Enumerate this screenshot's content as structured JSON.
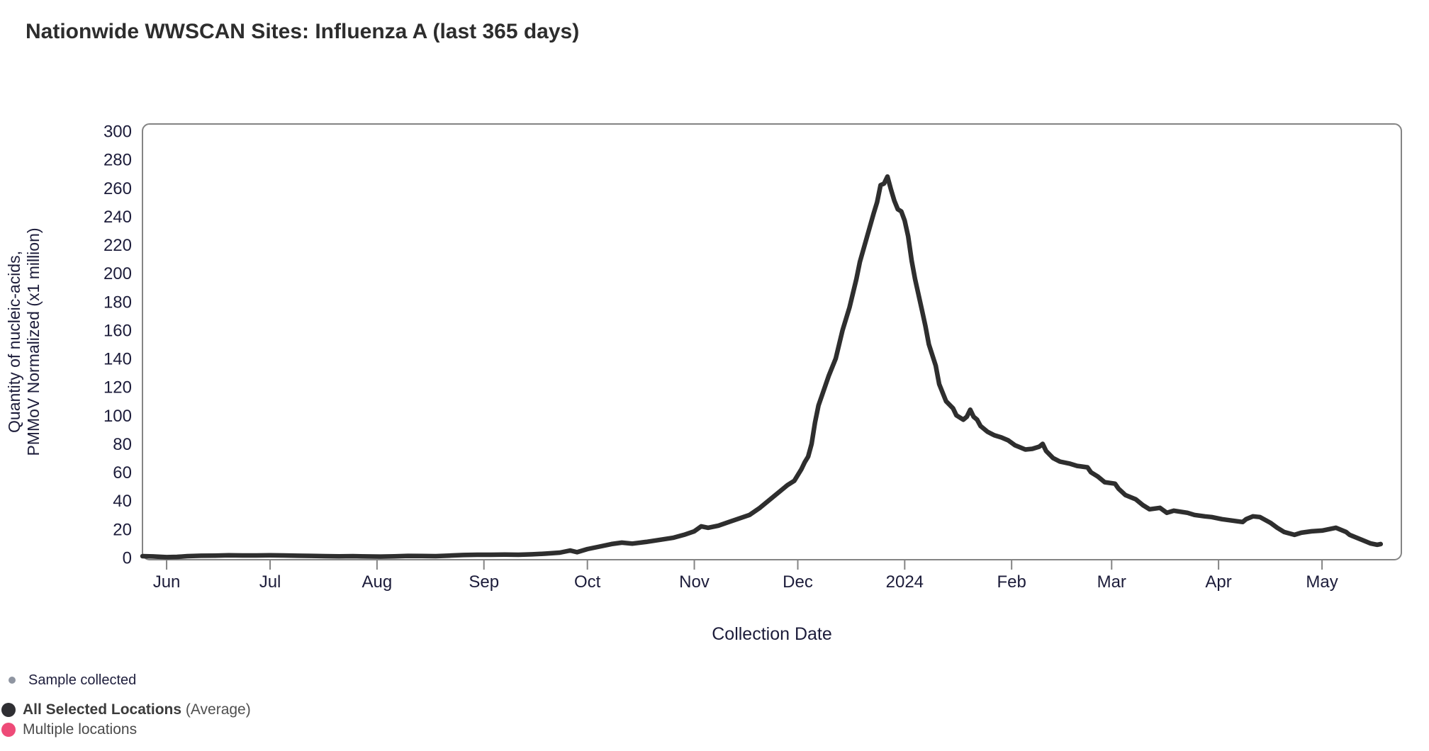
{
  "page": {
    "background": "#ffffff",
    "title": "Nationwide WWSCAN Sites: Influenza A (last 365 days)"
  },
  "chart_data": {
    "type": "line",
    "title": "Nationwide WWSCAN Sites: Influenza A (last 365 days)",
    "xlabel": "Collection Date",
    "ylabel_lines": [
      "Quantity of nucleic-acids,",
      "PMMoV Normalized (x1 million)"
    ],
    "ylim": [
      0,
      300
    ],
    "ytick_step": 20,
    "grid": false,
    "legend_position": "bottom-left",
    "x_domain": [
      "2023-05-25",
      "2024-05-24"
    ],
    "xticks": [
      {
        "date": "2023-06-01",
        "label": "Jun"
      },
      {
        "date": "2023-07-01",
        "label": "Jul"
      },
      {
        "date": "2023-08-01",
        "label": "Aug"
      },
      {
        "date": "2023-09-01",
        "label": "Sep"
      },
      {
        "date": "2023-10-01",
        "label": "Oct"
      },
      {
        "date": "2023-11-01",
        "label": "Nov"
      },
      {
        "date": "2023-12-01",
        "label": "Dec"
      },
      {
        "date": "2024-01-01",
        "label": "2024"
      },
      {
        "date": "2024-02-01",
        "label": "Feb"
      },
      {
        "date": "2024-03-01",
        "label": "Mar"
      },
      {
        "date": "2024-04-01",
        "label": "Apr"
      },
      {
        "date": "2024-05-01",
        "label": "May"
      }
    ],
    "colors": {
      "line": "#2e2e2e",
      "axis": "#848484",
      "tick_text": "#1c1c3a"
    },
    "series": [
      {
        "name": "All Selected Locations (Average)",
        "color": "#2e2e2e",
        "points": [
          [
            "2023-05-25",
            1
          ],
          [
            "2023-05-28",
            0.8
          ],
          [
            "2023-06-01",
            0.3
          ],
          [
            "2023-06-04",
            0.5
          ],
          [
            "2023-06-07",
            1
          ],
          [
            "2023-06-11",
            1.3
          ],
          [
            "2023-06-15",
            1.4
          ],
          [
            "2023-06-19",
            1.6
          ],
          [
            "2023-06-23",
            1.5
          ],
          [
            "2023-06-27",
            1.5
          ],
          [
            "2023-07-01",
            1.6
          ],
          [
            "2023-07-05",
            1.5
          ],
          [
            "2023-07-09",
            1.3
          ],
          [
            "2023-07-13",
            1.2
          ],
          [
            "2023-07-17",
            1
          ],
          [
            "2023-07-21",
            0.9
          ],
          [
            "2023-07-25",
            1
          ],
          [
            "2023-07-29",
            0.8
          ],
          [
            "2023-08-02",
            0.7
          ],
          [
            "2023-08-06",
            0.9
          ],
          [
            "2023-08-10",
            1.2
          ],
          [
            "2023-08-14",
            1.1
          ],
          [
            "2023-08-18",
            1
          ],
          [
            "2023-08-22",
            1.4
          ],
          [
            "2023-08-26",
            1.8
          ],
          [
            "2023-08-30",
            2
          ],
          [
            "2023-09-03",
            2
          ],
          [
            "2023-09-07",
            2.1
          ],
          [
            "2023-09-11",
            2
          ],
          [
            "2023-09-15",
            2.3
          ],
          [
            "2023-09-19",
            2.8
          ],
          [
            "2023-09-23",
            3.5
          ],
          [
            "2023-09-26",
            5
          ],
          [
            "2023-09-28",
            3.8
          ],
          [
            "2023-10-01",
            6
          ],
          [
            "2023-10-04",
            7.5
          ],
          [
            "2023-10-08",
            9.5
          ],
          [
            "2023-10-11",
            10.5
          ],
          [
            "2023-10-14",
            9.8
          ],
          [
            "2023-10-18",
            11
          ],
          [
            "2023-10-22",
            12.5
          ],
          [
            "2023-10-26",
            14
          ],
          [
            "2023-10-29",
            16
          ],
          [
            "2023-11-01",
            18.5
          ],
          [
            "2023-11-03",
            22
          ],
          [
            "2023-11-05",
            21
          ],
          [
            "2023-11-08",
            22.5
          ],
          [
            "2023-11-11",
            25
          ],
          [
            "2023-11-14",
            27.5
          ],
          [
            "2023-11-17",
            30
          ],
          [
            "2023-11-20",
            35
          ],
          [
            "2023-11-23",
            41
          ],
          [
            "2023-11-26",
            47
          ],
          [
            "2023-11-28",
            51
          ],
          [
            "2023-11-30",
            54
          ],
          [
            "2023-12-02",
            62
          ],
          [
            "2023-12-03",
            67
          ],
          [
            "2023-12-04",
            71
          ],
          [
            "2023-12-05",
            80
          ],
          [
            "2023-12-06",
            95
          ],
          [
            "2023-12-07",
            107
          ],
          [
            "2023-12-08",
            114
          ],
          [
            "2023-12-10",
            128
          ],
          [
            "2023-12-12",
            140
          ],
          [
            "2023-12-14",
            160
          ],
          [
            "2023-12-16",
            176
          ],
          [
            "2023-12-18",
            196
          ],
          [
            "2023-12-19",
            208
          ],
          [
            "2023-12-21",
            225
          ],
          [
            "2023-12-23",
            242
          ],
          [
            "2023-12-24",
            250
          ],
          [
            "2023-12-25",
            262
          ],
          [
            "2023-12-26",
            263
          ],
          [
            "2023-12-27",
            268
          ],
          [
            "2023-12-28",
            259
          ],
          [
            "2023-12-29",
            251
          ],
          [
            "2023-12-30",
            245
          ],
          [
            "2023-12-31",
            243.5
          ],
          [
            "2024-01-01",
            237
          ],
          [
            "2024-01-02",
            226
          ],
          [
            "2024-01-03",
            209
          ],
          [
            "2024-01-04",
            196
          ],
          [
            "2024-01-06",
            174
          ],
          [
            "2024-01-07",
            163
          ],
          [
            "2024-01-08",
            150
          ],
          [
            "2024-01-10",
            135
          ],
          [
            "2024-01-11",
            122
          ],
          [
            "2024-01-13",
            110
          ],
          [
            "2024-01-15",
            105
          ],
          [
            "2024-01-16",
            100
          ],
          [
            "2024-01-18",
            97
          ],
          [
            "2024-01-19",
            99
          ],
          [
            "2024-01-20",
            104
          ],
          [
            "2024-01-21",
            99
          ],
          [
            "2024-01-22",
            97
          ],
          [
            "2024-01-23",
            92.5
          ],
          [
            "2024-01-25",
            88.5
          ],
          [
            "2024-01-27",
            86
          ],
          [
            "2024-01-29",
            84.5
          ],
          [
            "2024-01-31",
            82.5
          ],
          [
            "2024-02-02",
            79
          ],
          [
            "2024-02-03",
            78
          ],
          [
            "2024-02-05",
            76
          ],
          [
            "2024-02-07",
            76.5
          ],
          [
            "2024-02-09",
            78
          ],
          [
            "2024-02-10",
            80
          ],
          [
            "2024-02-11",
            75
          ],
          [
            "2024-02-13",
            70
          ],
          [
            "2024-02-15",
            67.5
          ],
          [
            "2024-02-18",
            66
          ],
          [
            "2024-02-20",
            64.5
          ],
          [
            "2024-02-23",
            63.5
          ],
          [
            "2024-02-24",
            60
          ],
          [
            "2024-02-26",
            57
          ],
          [
            "2024-02-28",
            53
          ],
          [
            "2024-03-02",
            52
          ],
          [
            "2024-03-03",
            48.5
          ],
          [
            "2024-03-05",
            44
          ],
          [
            "2024-03-08",
            41
          ],
          [
            "2024-03-10",
            37
          ],
          [
            "2024-03-12",
            34
          ],
          [
            "2024-03-15",
            35
          ],
          [
            "2024-03-17",
            31.5
          ],
          [
            "2024-03-19",
            33
          ],
          [
            "2024-03-23",
            31.5
          ],
          [
            "2024-03-25",
            30
          ],
          [
            "2024-03-28",
            29
          ],
          [
            "2024-03-30",
            28.5
          ],
          [
            "2024-04-02",
            27
          ],
          [
            "2024-04-05",
            26
          ],
          [
            "2024-04-08",
            25
          ],
          [
            "2024-04-09",
            27
          ],
          [
            "2024-04-11",
            29
          ],
          [
            "2024-04-13",
            28.5
          ],
          [
            "2024-04-16",
            24.5
          ],
          [
            "2024-04-18",
            21
          ],
          [
            "2024-04-20",
            18
          ],
          [
            "2024-04-23",
            16
          ],
          [
            "2024-04-25",
            17.5
          ],
          [
            "2024-04-28",
            18.5
          ],
          [
            "2024-05-01",
            19
          ],
          [
            "2024-05-02",
            19.5
          ],
          [
            "2024-05-05",
            21
          ],
          [
            "2024-05-08",
            18
          ],
          [
            "2024-05-09",
            16
          ],
          [
            "2024-05-11",
            14
          ],
          [
            "2024-05-13",
            12
          ],
          [
            "2024-05-15",
            10
          ],
          [
            "2024-05-17",
            9
          ],
          [
            "2024-05-18",
            9.5
          ]
        ]
      }
    ]
  },
  "legend": {
    "items": [
      {
        "label": "Sample collected",
        "suffix": "",
        "marker": "small-dot",
        "color": "#8f95a1"
      },
      {
        "label": "All Selected Locations",
        "suffix": " (Average)",
        "marker": "large-dot",
        "color": "#2f2f33"
      },
      {
        "label": "Multiple locations",
        "suffix": "",
        "marker": "large-dot",
        "color": "#ee4b78"
      }
    ]
  }
}
